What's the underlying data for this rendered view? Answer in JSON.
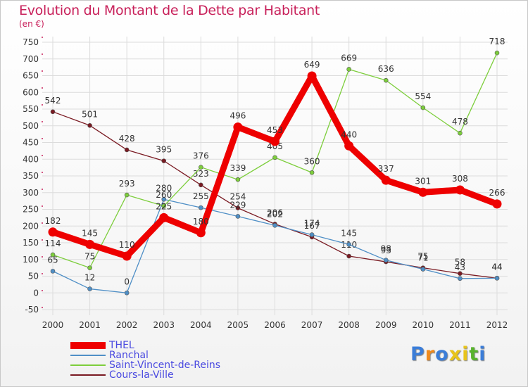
{
  "title": "Evolution du Montant de la Dette par Habitant",
  "unit": "(en €)",
  "logo": "Proxiti",
  "chart_data": {
    "type": "line",
    "x": [
      2000,
      2001,
      2002,
      2003,
      2004,
      2005,
      2006,
      2007,
      2008,
      2009,
      2010,
      2011,
      2012
    ],
    "ylim": [
      -50,
      750
    ],
    "yticks": [
      -50,
      0,
      50,
      100,
      150,
      200,
      250,
      300,
      350,
      400,
      450,
      500,
      550,
      600,
      650,
      700,
      750
    ],
    "grid": true,
    "legend_position": "bottom-left",
    "series": [
      {
        "name": "Cours-la-Ville",
        "color": "#7a1a22",
        "values": [
          542,
          501,
          428,
          395,
          323,
          254,
          206,
          167,
          110,
          93,
          75,
          58,
          44
        ]
      },
      {
        "name": "Ranchal",
        "color": "#4f8fc6",
        "values": [
          65,
          12,
          0,
          280,
          255,
          229,
          202,
          174,
          145,
          98,
          71,
          43,
          44
        ]
      },
      {
        "name": "Saint-Vincent-de-Reins",
        "color": "#7dce3c",
        "values": [
          114,
          75,
          293,
          260,
          376,
          339,
          405,
          360,
          669,
          636,
          554,
          478,
          718
        ]
      },
      {
        "name": "THEL",
        "color": "#ee0000",
        "values": [
          182,
          145,
          110,
          225,
          180,
          496,
          453,
          649,
          440,
          337,
          301,
          308,
          266
        ]
      }
    ]
  }
}
